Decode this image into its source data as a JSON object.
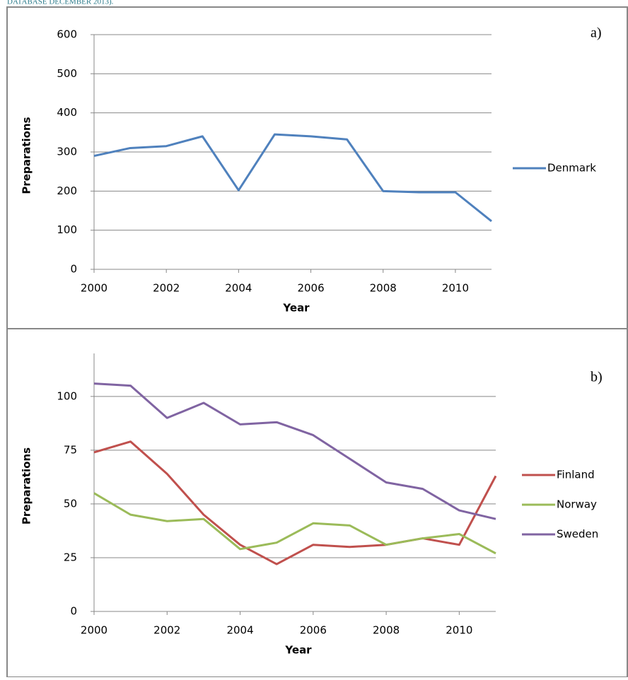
{
  "caption": "DATABASE DECEMBER 2013).",
  "chart_data": [
    {
      "type": "line",
      "label": "a)",
      "x_label": "Year",
      "y_label": "Preparations",
      "x": [
        2000,
        2001,
        2002,
        2003,
        2004,
        2005,
        2006,
        2007,
        2008,
        2009,
        2010,
        2011
      ],
      "series": [
        {
          "name": "Denmark",
          "color": "#4f81bd",
          "values": [
            290,
            310,
            315,
            340,
            202,
            345,
            340,
            332,
            200,
            197,
            197,
            123
          ]
        }
      ],
      "xlim": [
        2000,
        2011
      ],
      "xticks": [
        2000,
        2002,
        2004,
        2006,
        2008,
        2010
      ],
      "ylim": [
        0,
        600
      ],
      "yticks": [
        0,
        100,
        200,
        300,
        400,
        500,
        600
      ],
      "grid": true,
      "legend": "right"
    },
    {
      "type": "line",
      "label": "b)",
      "x_label": "Year",
      "y_label": "Preparations",
      "x": [
        2000,
        2001,
        2002,
        2003,
        2004,
        2005,
        2006,
        2007,
        2008,
        2009,
        2010,
        2011
      ],
      "series": [
        {
          "name": "Finland",
          "color": "#c0504d",
          "values": [
            74,
            79,
            64,
            45,
            31,
            22,
            31,
            30,
            31,
            34,
            31,
            63
          ]
        },
        {
          "name": "Norway",
          "color": "#9bbb59",
          "values": [
            55,
            45,
            42,
            43,
            29,
            32,
            41,
            40,
            31,
            34,
            36,
            27
          ]
        },
        {
          "name": "Sweden",
          "color": "#8064a2",
          "values": [
            106,
            105,
            90,
            97,
            87,
            88,
            82,
            71,
            60,
            57,
            47,
            43
          ]
        }
      ],
      "xlim": [
        2000,
        2011
      ],
      "xticks": [
        2000,
        2002,
        2004,
        2006,
        2008,
        2010
      ],
      "ylim": [
        0,
        120
      ],
      "yticks": [
        0,
        25,
        50,
        75,
        100
      ],
      "grid": true,
      "legend": "right"
    }
  ]
}
